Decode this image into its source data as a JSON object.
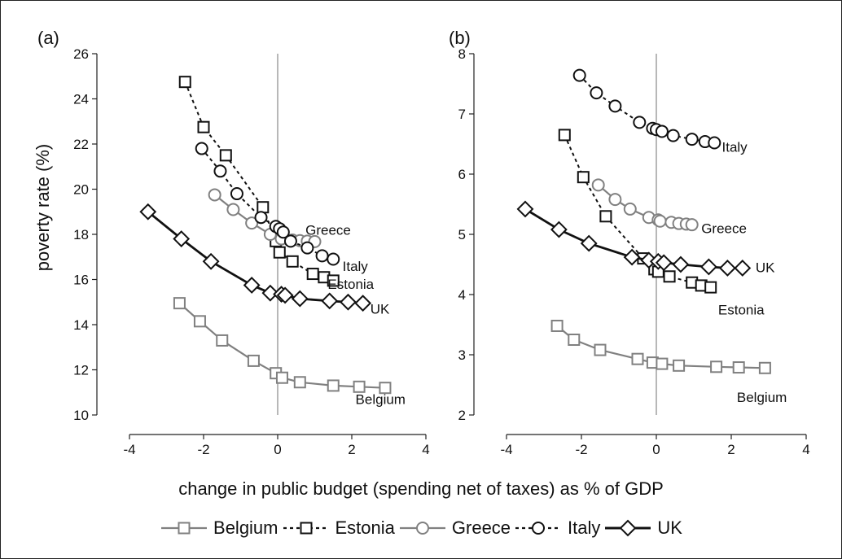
{
  "xlabel": "change in public budget (spending net of taxes) as % of GDP",
  "ylabel": "poverty rate (%)",
  "legend": [
    {
      "name": "Belgium",
      "color": "#808080",
      "dash": "",
      "marker": "square"
    },
    {
      "name": "Estonia",
      "color": "#111111",
      "dash": "4,4",
      "marker": "square"
    },
    {
      "name": "Greece",
      "color": "#808080",
      "dash": "",
      "marker": "circle"
    },
    {
      "name": "Italy",
      "color": "#111111",
      "dash": "4,4",
      "marker": "circle"
    },
    {
      "name": "UK",
      "color": "#111111",
      "dash": "",
      "marker": "diamond"
    }
  ],
  "chart_data": [
    {
      "type": "line",
      "panel_label": "(a)",
      "xlim": [
        -4,
        4
      ],
      "ylim": [
        10,
        26
      ],
      "xticks": [
        -4,
        -2,
        0,
        2,
        4
      ],
      "yticks": [
        10,
        12,
        14,
        16,
        18,
        20,
        22,
        24,
        26
      ],
      "grid": false,
      "vline_x": 0,
      "series": [
        {
          "name": "Belgium",
          "color": "#808080",
          "width": 2.2,
          "dash": "",
          "marker": "square",
          "label_at": [
            2.1,
            10.7
          ],
          "x": [
            -2.65,
            -2.1,
            -1.5,
            -0.65,
            -0.05,
            0.12,
            0.6,
            1.5,
            2.2,
            2.9
          ],
          "y": [
            14.95,
            14.15,
            13.3,
            12.4,
            11.85,
            11.65,
            11.45,
            11.3,
            11.25,
            11.2
          ]
        },
        {
          "name": "Estonia",
          "color": "#111111",
          "width": 2,
          "dash": "4,4",
          "marker": "square",
          "label_at": [
            1.35,
            15.8
          ],
          "x": [
            -2.5,
            -2.0,
            -1.4,
            -0.4,
            -0.05,
            0.05,
            0.4,
            0.95,
            1.25,
            1.5
          ],
          "y": [
            24.75,
            22.75,
            21.5,
            19.2,
            17.7,
            17.2,
            16.8,
            16.25,
            16.1,
            15.95
          ]
        },
        {
          "name": "Greece",
          "color": "#808080",
          "width": 2.2,
          "dash": "",
          "marker": "circle",
          "label_at": [
            0.75,
            18.2
          ],
          "x": [
            -1.7,
            -1.2,
            -0.7,
            -0.2,
            0.1,
            0.4,
            0.6,
            0.8,
            1.0
          ],
          "y": [
            19.75,
            19.1,
            18.5,
            18.0,
            17.8,
            17.75,
            17.72,
            17.7,
            17.68
          ]
        },
        {
          "name": "Italy",
          "color": "#111111",
          "width": 2,
          "dash": "4,4",
          "marker": "circle",
          "label_at": [
            1.75,
            16.6
          ],
          "x": [
            -2.05,
            -1.55,
            -1.1,
            -0.45,
            -0.05,
            0.05,
            0.15,
            0.35,
            0.8,
            1.2,
            1.5
          ],
          "y": [
            21.8,
            20.8,
            19.8,
            18.75,
            18.35,
            18.25,
            18.1,
            17.7,
            17.4,
            17.05,
            16.9
          ]
        },
        {
          "name": "UK",
          "color": "#111111",
          "width": 2.8,
          "dash": "",
          "marker": "diamond",
          "label_at": [
            2.5,
            14.7
          ],
          "x": [
            -3.5,
            -2.6,
            -1.8,
            -0.7,
            -0.2,
            0.1,
            0.2,
            0.6,
            1.4,
            1.9,
            2.3
          ],
          "y": [
            19.0,
            17.8,
            16.8,
            15.75,
            15.4,
            15.35,
            15.3,
            15.15,
            15.05,
            15.0,
            14.95
          ]
        }
      ]
    },
    {
      "type": "line",
      "panel_label": "(b)",
      "xlim": [
        -4,
        4
      ],
      "ylim": [
        2,
        8
      ],
      "xticks": [
        -4,
        -2,
        0,
        2,
        4
      ],
      "yticks": [
        2,
        3,
        4,
        5,
        6,
        7,
        8
      ],
      "grid": false,
      "vline_x": 0,
      "series": [
        {
          "name": "Belgium",
          "color": "#808080",
          "width": 2.2,
          "dash": "",
          "marker": "square",
          "label_at": [
            2.15,
            2.3
          ],
          "x": [
            -2.65,
            -2.2,
            -1.5,
            -0.5,
            -0.1,
            0.15,
            0.6,
            1.6,
            2.2,
            2.9
          ],
          "y": [
            3.48,
            3.25,
            3.08,
            2.93,
            2.87,
            2.85,
            2.82,
            2.8,
            2.79,
            2.78
          ]
        },
        {
          "name": "Estonia",
          "color": "#111111",
          "width": 2,
          "dash": "4,4",
          "marker": "square",
          "label_at": [
            1.65,
            3.75
          ],
          "x": [
            -2.45,
            -1.95,
            -1.35,
            -0.35,
            -0.05,
            0.05,
            0.35,
            0.95,
            1.2,
            1.45
          ],
          "y": [
            6.65,
            5.95,
            5.3,
            4.6,
            4.42,
            4.38,
            4.3,
            4.2,
            4.15,
            4.12
          ]
        },
        {
          "name": "Greece",
          "color": "#808080",
          "width": 2.2,
          "dash": "",
          "marker": "circle",
          "label_at": [
            1.2,
            5.1
          ],
          "x": [
            -1.55,
            -1.1,
            -0.7,
            -0.2,
            0.05,
            0.1,
            0.4,
            0.6,
            0.8,
            0.95
          ],
          "y": [
            5.82,
            5.58,
            5.42,
            5.28,
            5.24,
            5.22,
            5.2,
            5.18,
            5.17,
            5.16
          ]
        },
        {
          "name": "Italy",
          "color": "#111111",
          "width": 2,
          "dash": "4,4",
          "marker": "circle",
          "label_at": [
            1.75,
            6.45
          ],
          "x": [
            -2.05,
            -1.6,
            -1.1,
            -0.45,
            -0.1,
            0.0,
            0.15,
            0.45,
            0.95,
            1.3,
            1.55
          ],
          "y": [
            7.64,
            7.35,
            7.13,
            6.86,
            6.76,
            6.74,
            6.71,
            6.64,
            6.58,
            6.54,
            6.52
          ]
        },
        {
          "name": "UK",
          "color": "#111111",
          "width": 2.8,
          "dash": "",
          "marker": "diamond",
          "label_at": [
            2.65,
            4.45
          ],
          "x": [
            -3.5,
            -2.6,
            -1.8,
            -0.65,
            -0.2,
            0.05,
            0.2,
            0.65,
            1.4,
            1.9,
            2.3
          ],
          "y": [
            5.42,
            5.08,
            4.85,
            4.62,
            4.57,
            4.55,
            4.53,
            4.5,
            4.46,
            4.44,
            4.44
          ]
        }
      ]
    }
  ]
}
